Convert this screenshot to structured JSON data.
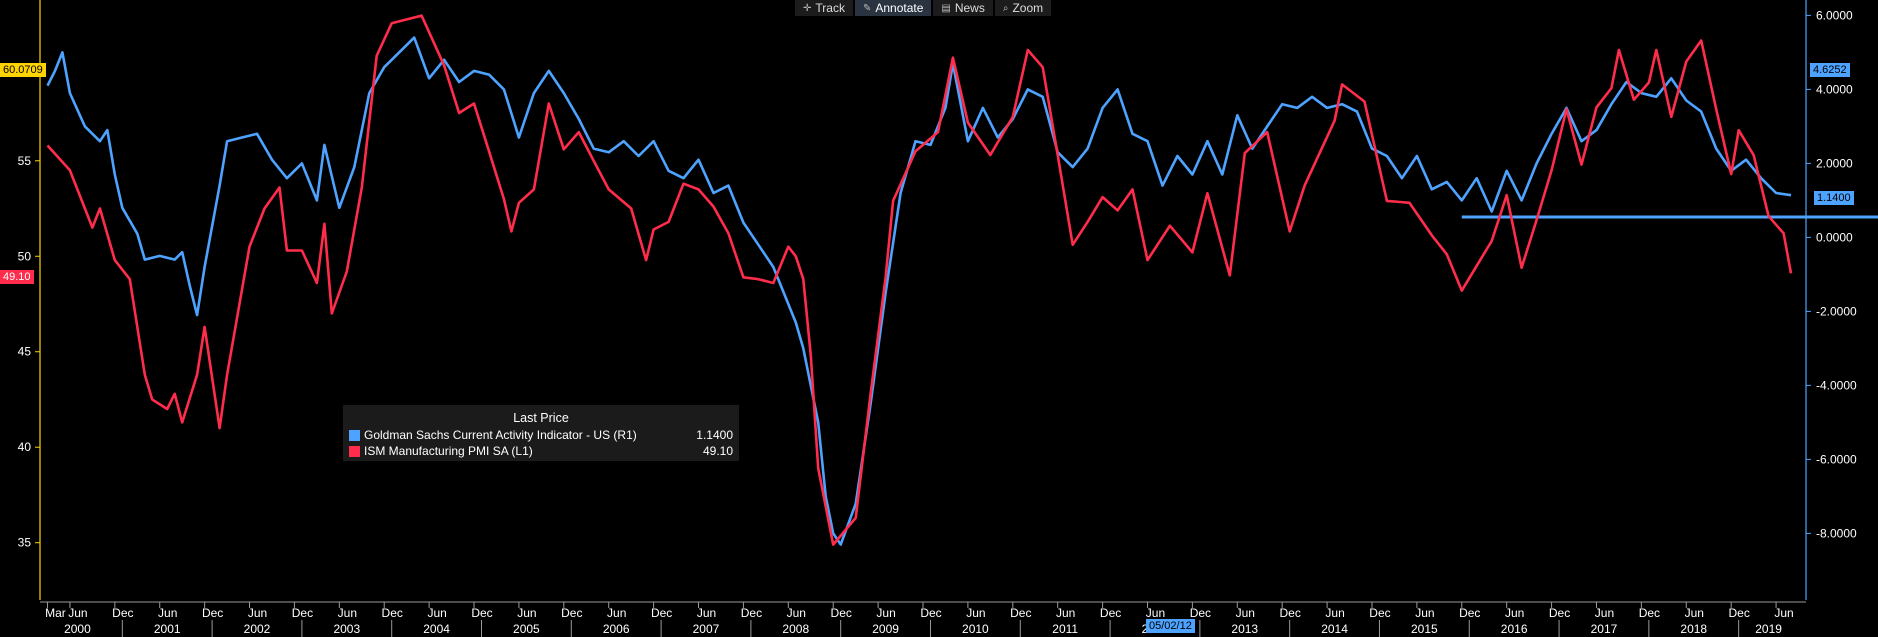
{
  "toolbar": {
    "items": [
      {
        "label": "Track",
        "icon": "crosshair-icon"
      },
      {
        "label": "Annotate",
        "icon": "pencil-icon"
      },
      {
        "label": "News",
        "icon": "news-icon"
      },
      {
        "label": "Zoom",
        "icon": "magnifier-icon"
      }
    ],
    "active": "Annotate"
  },
  "legend": {
    "title": "Last Price",
    "items": [
      {
        "name": "Goldman Sachs Current Activity Indicator - US  (R1)",
        "value": "1.1400",
        "color": "#4da3ff"
      },
      {
        "name": "ISM Manufacturing PMI SA  (L1)",
        "value": "49.10",
        "color": "#ff2d4b"
      }
    ]
  },
  "tags": {
    "left_top": "60.0709",
    "left_pmi": "49.10",
    "right_top": "4.6252",
    "right_cai": "1.1400",
    "crosshair_date": "05/02/12"
  },
  "colors": {
    "cai": "#4da3ff",
    "pmi": "#ff2d4b",
    "left_axis": "#ffd400",
    "right_axis": "#4da3ff",
    "background": "#000000"
  },
  "chart_data": {
    "type": "line",
    "x_start": "2000-03",
    "x_end": "2019-06",
    "y_left": {
      "ticks": [
        35,
        40,
        45,
        50,
        55
      ],
      "range": [
        32,
        63
      ]
    },
    "y_right": {
      "ticks": [
        "6.0000",
        "4.0000",
        "2.0000",
        "0.0000",
        "-2.0000",
        "-4.0000",
        "-6.0000",
        "-8.0000"
      ],
      "range": [
        -9.8,
        6.2
      ]
    },
    "x_month_labels": [
      "Mar",
      "Jun",
      "Dec",
      "Jun",
      "Dec",
      "Jun",
      "Dec",
      "Jun",
      "Dec",
      "Jun",
      "Dec",
      "Jun",
      "Dec",
      "Jun",
      "Dec",
      "Jun",
      "Dec",
      "Jun",
      "Dec",
      "Jun",
      "Dec",
      "Jun",
      "Dec",
      "Jun",
      "Dec",
      "Jun",
      "Dec",
      "Jun",
      "Dec",
      "Jun",
      "Dec",
      "Jun",
      "Dec",
      "Jun",
      "Dec",
      "Jun",
      "Dec",
      "Jun",
      "Dec",
      "Jun"
    ],
    "x_year_labels": [
      "2000",
      "2001",
      "2002",
      "2003",
      "2004",
      "2005",
      "2006",
      "2007",
      "2008",
      "2009",
      "2010",
      "2011",
      "2012",
      "2013",
      "2014",
      "2015",
      "2016",
      "2017",
      "2018",
      "2019"
    ],
    "reference_line": {
      "series": "Goldman Sachs Current Activity Indicator - US",
      "value": 0.55,
      "from": "2015-12"
    },
    "series": [
      {
        "name": "ISM Manufacturing PMI SA",
        "axis": "left",
        "color": "#ff2d4b",
        "points": [
          [
            "2000-03",
            55.8
          ],
          [
            "2000-06",
            54.5
          ],
          [
            "2000-09",
            51.5
          ],
          [
            "2000-10",
            52.5
          ],
          [
            "2000-12",
            49.8
          ],
          [
            "2001-02",
            48.8
          ],
          [
            "2001-04",
            43.8
          ],
          [
            "2001-05",
            42.5
          ],
          [
            "2001-07",
            42.0
          ],
          [
            "2001-08",
            42.8
          ],
          [
            "2001-09",
            41.3
          ],
          [
            "2001-11",
            43.8
          ],
          [
            "2001-12",
            46.3
          ],
          [
            "2002-02",
            41.0
          ],
          [
            "2002-03",
            43.8
          ],
          [
            "2002-06",
            50.5
          ],
          [
            "2002-08",
            52.5
          ],
          [
            "2002-10",
            53.6
          ],
          [
            "2002-11",
            50.3
          ],
          [
            "2003-01",
            50.3
          ],
          [
            "2003-03",
            48.6
          ],
          [
            "2003-04",
            51.7
          ],
          [
            "2003-05",
            47.0
          ],
          [
            "2003-07",
            49.2
          ],
          [
            "2003-09",
            53.6
          ],
          [
            "2003-11",
            60.5
          ],
          [
            "2004-01",
            62.2
          ],
          [
            "2004-05",
            62.6
          ],
          [
            "2004-08",
            60.0
          ],
          [
            "2004-10",
            57.5
          ],
          [
            "2004-12",
            58.0
          ],
          [
            "2005-02",
            55.5
          ],
          [
            "2005-04",
            53.0
          ],
          [
            "2005-05",
            51.3
          ],
          [
            "2005-06",
            52.8
          ],
          [
            "2005-08",
            53.5
          ],
          [
            "2005-10",
            58.0
          ],
          [
            "2005-12",
            55.6
          ],
          [
            "2006-02",
            56.5
          ],
          [
            "2006-04",
            55.0
          ],
          [
            "2006-06",
            53.5
          ],
          [
            "2006-09",
            52.5
          ],
          [
            "2006-11",
            49.8
          ],
          [
            "2006-12",
            51.4
          ],
          [
            "2007-02",
            51.8
          ],
          [
            "2007-04",
            53.8
          ],
          [
            "2007-06",
            53.5
          ],
          [
            "2007-08",
            52.6
          ],
          [
            "2007-10",
            51.2
          ],
          [
            "2007-12",
            48.9
          ],
          [
            "2008-02",
            48.8
          ],
          [
            "2008-04",
            48.6
          ],
          [
            "2008-06",
            50.5
          ],
          [
            "2008-07",
            50.0
          ],
          [
            "2008-08",
            48.8
          ],
          [
            "2008-09",
            44.8
          ],
          [
            "2008-10",
            38.9
          ],
          [
            "2008-12",
            34.9
          ],
          [
            "2009-03",
            36.3
          ],
          [
            "2009-05",
            42.8
          ],
          [
            "2009-07",
            48.9
          ],
          [
            "2009-08",
            52.9
          ],
          [
            "2009-11",
            55.5
          ],
          [
            "2010-02",
            56.5
          ],
          [
            "2010-04",
            60.4
          ],
          [
            "2010-06",
            57.0
          ],
          [
            "2010-09",
            55.3
          ],
          [
            "2010-12",
            57.3
          ],
          [
            "2011-02",
            60.8
          ],
          [
            "2011-04",
            59.9
          ],
          [
            "2011-06",
            55.3
          ],
          [
            "2011-08",
            50.6
          ],
          [
            "2011-10",
            51.8
          ],
          [
            "2011-12",
            53.1
          ],
          [
            "2012-02",
            52.4
          ],
          [
            "2012-04",
            53.5
          ],
          [
            "2012-06",
            49.8
          ],
          [
            "2012-09",
            51.6
          ],
          [
            "2012-12",
            50.2
          ],
          [
            "2013-02",
            53.3
          ],
          [
            "2013-05",
            49.0
          ],
          [
            "2013-07",
            55.4
          ],
          [
            "2013-10",
            56.5
          ],
          [
            "2014-01",
            51.3
          ],
          [
            "2014-03",
            53.7
          ],
          [
            "2014-05",
            55.4
          ],
          [
            "2014-07",
            57.1
          ],
          [
            "2014-08",
            59.0
          ],
          [
            "2014-11",
            58.1
          ],
          [
            "2015-02",
            52.9
          ],
          [
            "2015-05",
            52.8
          ],
          [
            "2015-08",
            51.1
          ],
          [
            "2015-10",
            50.1
          ],
          [
            "2015-12",
            48.2
          ],
          [
            "2016-02",
            49.5
          ],
          [
            "2016-04",
            50.8
          ],
          [
            "2016-06",
            53.2
          ],
          [
            "2016-08",
            49.4
          ],
          [
            "2016-10",
            51.9
          ],
          [
            "2016-12",
            54.5
          ],
          [
            "2017-02",
            57.7
          ],
          [
            "2017-04",
            54.8
          ],
          [
            "2017-06",
            57.8
          ],
          [
            "2017-08",
            58.8
          ],
          [
            "2017-09",
            60.8
          ],
          [
            "2017-11",
            58.2
          ],
          [
            "2018-01",
            59.1
          ],
          [
            "2018-02",
            60.8
          ],
          [
            "2018-04",
            57.3
          ],
          [
            "2018-06",
            60.2
          ],
          [
            "2018-08",
            61.3
          ],
          [
            "2018-10",
            57.7
          ],
          [
            "2018-12",
            54.3
          ],
          [
            "2019-01",
            56.6
          ],
          [
            "2019-03",
            55.3
          ],
          [
            "2019-05",
            52.1
          ],
          [
            "2019-07",
            51.2
          ],
          [
            "2019-08",
            49.1
          ]
        ]
      },
      {
        "name": "Goldman Sachs Current Activity Indicator - US",
        "axis": "right",
        "color": "#4da3ff",
        "points": [
          [
            "2000-03",
            4.1
          ],
          [
            "2000-04",
            4.5
          ],
          [
            "2000-05",
            5.0
          ],
          [
            "2000-06",
            3.9
          ],
          [
            "2000-08",
            3.0
          ],
          [
            "2000-10",
            2.6
          ],
          [
            "2000-11",
            2.9
          ],
          [
            "2000-12",
            1.7
          ],
          [
            "2001-01",
            0.8
          ],
          [
            "2001-03",
            0.1
          ],
          [
            "2001-04",
            -0.6
          ],
          [
            "2001-06",
            -0.5
          ],
          [
            "2001-08",
            -0.6
          ],
          [
            "2001-09",
            -0.4
          ],
          [
            "2001-10",
            -1.3
          ],
          [
            "2001-11",
            -2.1
          ],
          [
            "2001-12",
            -0.8
          ],
          [
            "2002-02",
            1.4
          ],
          [
            "2002-03",
            2.6
          ],
          [
            "2002-05",
            2.7
          ],
          [
            "2002-07",
            2.8
          ],
          [
            "2002-09",
            2.1
          ],
          [
            "2002-11",
            1.6
          ],
          [
            "2003-01",
            2.0
          ],
          [
            "2003-03",
            1.0
          ],
          [
            "2003-04",
            2.5
          ],
          [
            "2003-06",
            0.8
          ],
          [
            "2003-08",
            1.9
          ],
          [
            "2003-10",
            3.9
          ],
          [
            "2003-12",
            4.6
          ],
          [
            "2004-02",
            5.0
          ],
          [
            "2004-04",
            5.4
          ],
          [
            "2004-06",
            4.3
          ],
          [
            "2004-08",
            4.8
          ],
          [
            "2004-10",
            4.2
          ],
          [
            "2004-12",
            4.5
          ],
          [
            "2005-02",
            4.4
          ],
          [
            "2005-04",
            4.0
          ],
          [
            "2005-06",
            2.7
          ],
          [
            "2005-08",
            3.9
          ],
          [
            "2005-10",
            4.5
          ],
          [
            "2005-12",
            3.9
          ],
          [
            "2006-02",
            3.2
          ],
          [
            "2006-04",
            2.4
          ],
          [
            "2006-06",
            2.3
          ],
          [
            "2006-08",
            2.6
          ],
          [
            "2006-10",
            2.2
          ],
          [
            "2006-12",
            2.6
          ],
          [
            "2007-02",
            1.8
          ],
          [
            "2007-04",
            1.6
          ],
          [
            "2007-06",
            2.1
          ],
          [
            "2007-08",
            1.2
          ],
          [
            "2007-10",
            1.4
          ],
          [
            "2007-12",
            0.4
          ],
          [
            "2008-02",
            -0.2
          ],
          [
            "2008-04",
            -0.8
          ],
          [
            "2008-06",
            -1.8
          ],
          [
            "2008-07",
            -2.3
          ],
          [
            "2008-08",
            -3.0
          ],
          [
            "2008-10",
            -5.0
          ],
          [
            "2008-11",
            -7.0
          ],
          [
            "2008-12",
            -8.0
          ],
          [
            "2009-01",
            -8.3
          ],
          [
            "2009-03",
            -7.2
          ],
          [
            "2009-05",
            -4.5
          ],
          [
            "2009-07",
            -1.5
          ],
          [
            "2009-09",
            1.2
          ],
          [
            "2009-11",
            2.6
          ],
          [
            "2010-01",
            2.5
          ],
          [
            "2010-03",
            3.5
          ],
          [
            "2010-04",
            4.7
          ],
          [
            "2010-06",
            2.6
          ],
          [
            "2010-08",
            3.5
          ],
          [
            "2010-10",
            2.7
          ],
          [
            "2010-12",
            3.2
          ],
          [
            "2011-02",
            4.0
          ],
          [
            "2011-04",
            3.8
          ],
          [
            "2011-06",
            2.3
          ],
          [
            "2011-08",
            1.9
          ],
          [
            "2011-10",
            2.4
          ],
          [
            "2011-12",
            3.5
          ],
          [
            "2012-02",
            4.0
          ],
          [
            "2012-04",
            2.8
          ],
          [
            "2012-06",
            2.6
          ],
          [
            "2012-08",
            1.4
          ],
          [
            "2012-10",
            2.2
          ],
          [
            "2012-12",
            1.7
          ],
          [
            "2013-02",
            2.6
          ],
          [
            "2013-04",
            1.7
          ],
          [
            "2013-06",
            3.3
          ],
          [
            "2013-08",
            2.4
          ],
          [
            "2013-10",
            3.0
          ],
          [
            "2013-12",
            3.6
          ],
          [
            "2014-02",
            3.5
          ],
          [
            "2014-04",
            3.8
          ],
          [
            "2014-06",
            3.5
          ],
          [
            "2014-08",
            3.6
          ],
          [
            "2014-10",
            3.4
          ],
          [
            "2014-12",
            2.4
          ],
          [
            "2015-02",
            2.2
          ],
          [
            "2015-04",
            1.6
          ],
          [
            "2015-06",
            2.2
          ],
          [
            "2015-08",
            1.3
          ],
          [
            "2015-10",
            1.5
          ],
          [
            "2015-12",
            1.0
          ],
          [
            "2016-02",
            1.6
          ],
          [
            "2016-04",
            0.7
          ],
          [
            "2016-06",
            1.8
          ],
          [
            "2016-08",
            1.0
          ],
          [
            "2016-10",
            2.0
          ],
          [
            "2016-12",
            2.8
          ],
          [
            "2017-02",
            3.5
          ],
          [
            "2017-04",
            2.6
          ],
          [
            "2017-06",
            2.9
          ],
          [
            "2017-08",
            3.6
          ],
          [
            "2017-10",
            4.2
          ],
          [
            "2017-12",
            3.9
          ],
          [
            "2018-02",
            3.8
          ],
          [
            "2018-04",
            4.3
          ],
          [
            "2018-06",
            3.7
          ],
          [
            "2018-08",
            3.4
          ],
          [
            "2018-10",
            2.4
          ],
          [
            "2018-12",
            1.8
          ],
          [
            "2019-02",
            2.1
          ],
          [
            "2019-04",
            1.6
          ],
          [
            "2019-06",
            1.2
          ],
          [
            "2019-08",
            1.14
          ]
        ]
      }
    ]
  }
}
